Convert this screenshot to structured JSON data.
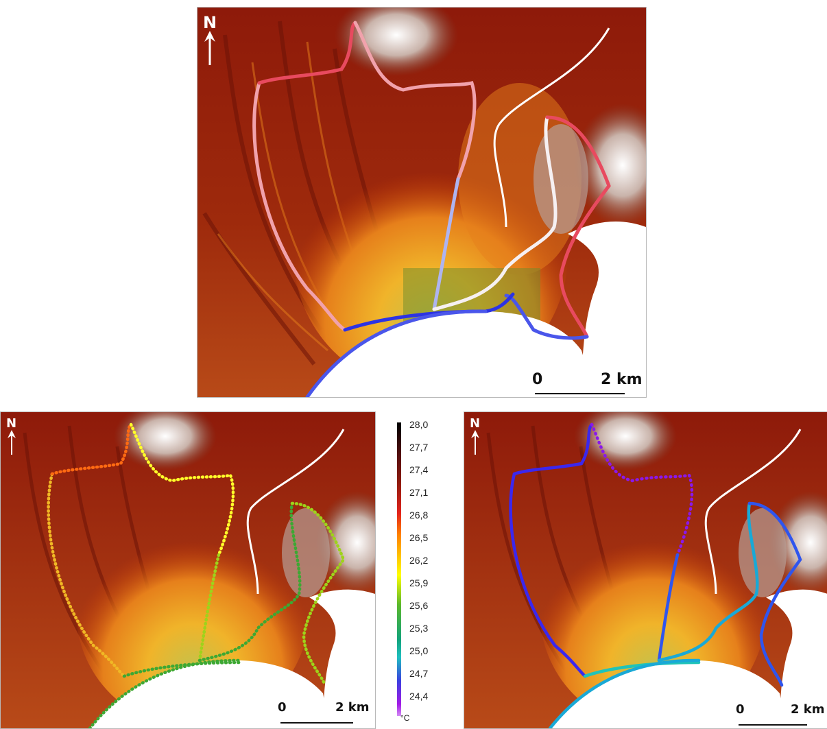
{
  "maps": {
    "top": {
      "north_label": "N",
      "scale": {
        "start": "0",
        "end": "2 km"
      },
      "route_palette": [
        "#e84a5f",
        "#f1a2ac",
        "#f6f0f2",
        "#aeb4f0",
        "#4a56ea",
        "#2c33e4"
      ]
    },
    "bottom_left": {
      "north_label": "N",
      "scale": {
        "start": "0",
        "end": "2 km"
      },
      "route_palette": [
        "#ff6a12",
        "#f0b825",
        "#ffff2a",
        "#9ed31a",
        "#3da833"
      ]
    },
    "bottom_right": {
      "north_label": "N",
      "scale": {
        "start": "0",
        "end": "2 km"
      },
      "route_palette": [
        "#8a18ea",
        "#3b27ee",
        "#2f55ee",
        "#19a9d6",
        "#20c3b8"
      ]
    }
  },
  "legend": {
    "ticks": [
      "28,0",
      "27,7",
      "27,4",
      "27,1",
      "26,8",
      "26,5",
      "26,2",
      "25,9",
      "25,6",
      "25,3",
      "25,0",
      "24,7",
      "24,4"
    ],
    "unit": "°C",
    "colors": [
      "#000000",
      "#8b1a0e",
      "#e3241c",
      "#ff7f00",
      "#ffff00",
      "#5cb82a",
      "#12a37b",
      "#1fbfc0",
      "#3a40e0",
      "#a21be6"
    ]
  },
  "terrain_colors": [
    "#ffffff",
    "#b79e95",
    "#7b4a3a",
    "#8e1a0a",
    "#c23a06",
    "#e6801b",
    "#f0b42a",
    "#c6c14a",
    "#6e8c2c",
    "#355e1f"
  ]
}
